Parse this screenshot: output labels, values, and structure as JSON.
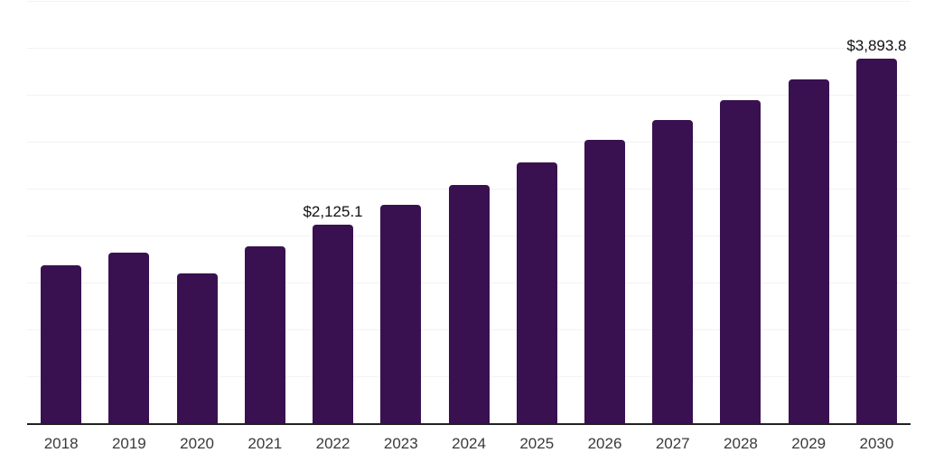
{
  "chart_data": {
    "type": "bar",
    "title": "",
    "categories": [
      "2018",
      "2019",
      "2020",
      "2021",
      "2022",
      "2023",
      "2024",
      "2025",
      "2026",
      "2027",
      "2028",
      "2029",
      "2030"
    ],
    "values": [
      1690,
      1825,
      1605,
      1895,
      2125.1,
      2335,
      2550,
      2790,
      3030,
      3240,
      3450,
      3675,
      3893.8
    ],
    "data_labels": [
      "",
      "",
      "",
      "",
      "$2,125.1",
      "",
      "",
      "",
      "",
      "",
      "",
      "",
      "$3,893.8"
    ],
    "xlabel": "",
    "ylabel": "",
    "ylim": [
      0,
      4500
    ],
    "gridline_step": 500,
    "grid": "horizontal",
    "y_axis_tick_labels": "hidden",
    "legend": "none",
    "colors": {
      "bar": "#3a1150",
      "gridline": "#f2f2f2",
      "axis_line": "#212121",
      "tick_label": "#3a3a3a",
      "data_label": "#111111"
    }
  }
}
